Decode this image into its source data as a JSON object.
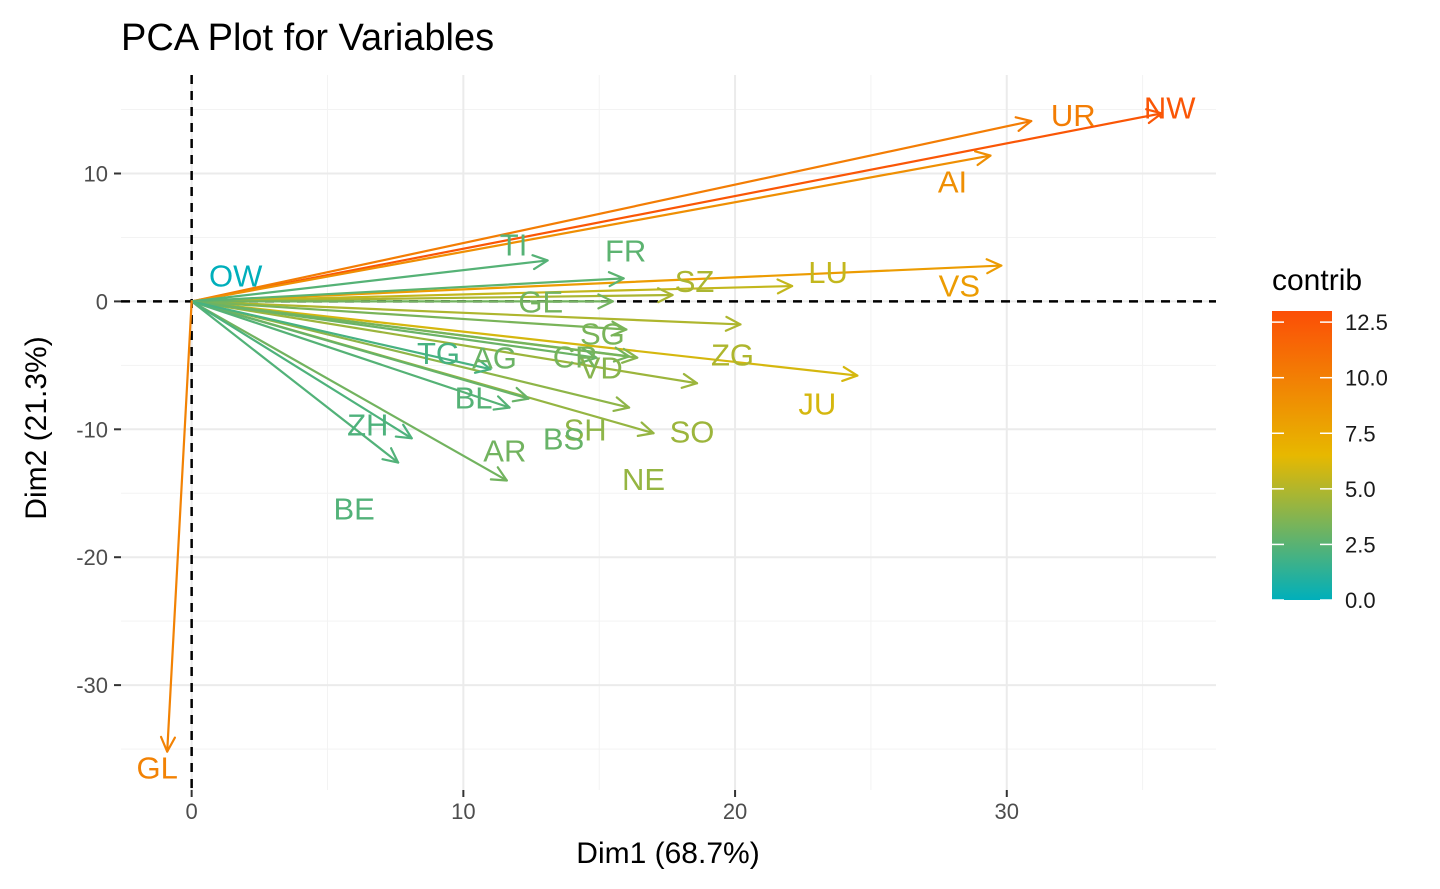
{
  "chart_data": {
    "type": "pca-variable-biplot",
    "title": "PCA Plot for Variables",
    "xlabel": "Dim1 (68.7%)",
    "ylabel": "Dim2 (21.3%)",
    "xlim": [
      -2.6,
      37.7
    ],
    "ylim": [
      -38.2,
      17.7
    ],
    "xticks": [
      0,
      10,
      20,
      30
    ],
    "yticks": [
      10,
      0,
      -10,
      -20,
      -30
    ],
    "xtick_labels": [
      "0",
      "10",
      "20",
      "30"
    ],
    "ytick_labels": [
      "10",
      "0",
      "-10",
      "-20",
      "-30"
    ],
    "grid": true,
    "reference_lines": {
      "x": 0,
      "y": 0,
      "style": "dashed"
    },
    "color_scale": {
      "name": "contrib",
      "range": [
        0,
        13
      ],
      "ticks": [
        "0.0",
        "2.5",
        "5.0",
        "7.5",
        "10.0",
        "12.5"
      ],
      "colors": [
        "#00AFBB",
        "#E7B800",
        "#FC4E07"
      ]
    },
    "legend_position": "right",
    "variables": [
      {
        "name": "NW",
        "x": 35.7,
        "y": 14.7,
        "contrib": 12.5
      },
      {
        "name": "UR",
        "x": 30.9,
        "y": 14.1,
        "contrib": 10.1
      },
      {
        "name": "AI",
        "x": 29.4,
        "y": 11.4,
        "contrib": 9.0
      },
      {
        "name": "VS",
        "x": 29.8,
        "y": 2.8,
        "contrib": 8.2
      },
      {
        "name": "LU",
        "x": 22.1,
        "y": 1.2,
        "contrib": 5.5
      },
      {
        "name": "JU",
        "x": 24.5,
        "y": -5.8,
        "contrib": 6.0
      },
      {
        "name": "SZ",
        "x": 17.7,
        "y": 0.5,
        "contrib": 4.8
      },
      {
        "name": "ZG",
        "x": 20.2,
        "y": -1.8,
        "contrib": 4.9
      },
      {
        "name": "SO",
        "x": 18.6,
        "y": -6.4,
        "contrib": 4.4
      },
      {
        "name": "NE",
        "x": 17.0,
        "y": -10.3,
        "contrib": 4.2
      },
      {
        "name": "SH",
        "x": 16.1,
        "y": -8.3,
        "contrib": 4.0
      },
      {
        "name": "VD",
        "x": 16.4,
        "y": -4.4,
        "contrib": 3.8
      },
      {
        "name": "SG",
        "x": 16.0,
        "y": -2.2,
        "contrib": 3.4
      },
      {
        "name": "GE",
        "x": 15.5,
        "y": 0.0,
        "contrib": 3.2
      },
      {
        "name": "FR",
        "x": 15.9,
        "y": 1.8,
        "contrib": 2.6
      },
      {
        "name": "TI",
        "x": 13.1,
        "y": 3.2,
        "contrib": 2.4
      },
      {
        "name": "CR",
        "x": 16.1,
        "y": -4.3,
        "contrib": 3.3
      },
      {
        "name": "AG",
        "x": 14.9,
        "y": -4.4,
        "contrib": 3.0
      },
      {
        "name": "AR",
        "x": 11.6,
        "y": -14.0,
        "contrib": 3.2
      },
      {
        "name": "BS",
        "x": 12.4,
        "y": -7.6,
        "contrib": 2.9
      },
      {
        "name": "BL",
        "x": 11.7,
        "y": -8.3,
        "contrib": 2.4
      },
      {
        "name": "TG",
        "x": 11.0,
        "y": -5.3,
        "contrib": 2.0
      },
      {
        "name": "ZH",
        "x": 8.1,
        "y": -10.7,
        "contrib": 2.2
      },
      {
        "name": "BE",
        "x": 7.6,
        "y": -12.6,
        "contrib": 2.3
      },
      {
        "name": "OW",
        "x": 0.0,
        "y": 0.0,
        "contrib": 0.0
      },
      {
        "name": "GL",
        "x": -0.9,
        "y": -35.2,
        "contrib": 9.8
      }
    ]
  }
}
